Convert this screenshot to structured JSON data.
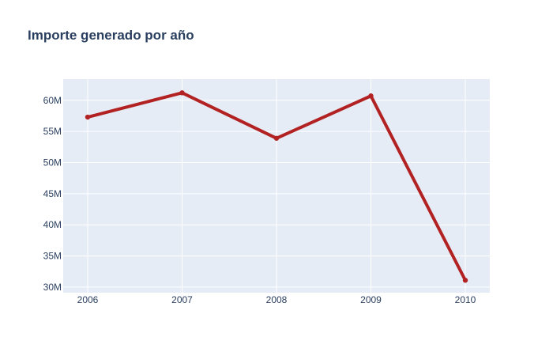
{
  "chart_data": {
    "type": "line",
    "title": "Importe generado por año",
    "xlabel": "",
    "ylabel": "",
    "x": [
      "2006",
      "2007",
      "2008",
      "2009",
      "2010"
    ],
    "series": [
      {
        "values": [
          57300000,
          61200000,
          53900000,
          60700000,
          31100000
        ],
        "color": "#b22222"
      }
    ],
    "ylim": [
      29100000,
      63400000
    ],
    "yticks": [
      30000000,
      35000000,
      40000000,
      45000000,
      50000000,
      55000000,
      60000000
    ],
    "ytick_labels": [
      "30M",
      "35M",
      "40M",
      "45M",
      "50M",
      "55M",
      "60M"
    ],
    "grid": true,
    "legend": "none",
    "plot_background": "#e5ecf6",
    "grid_color": "#ffffff",
    "text_color": "#2a3f5f"
  }
}
